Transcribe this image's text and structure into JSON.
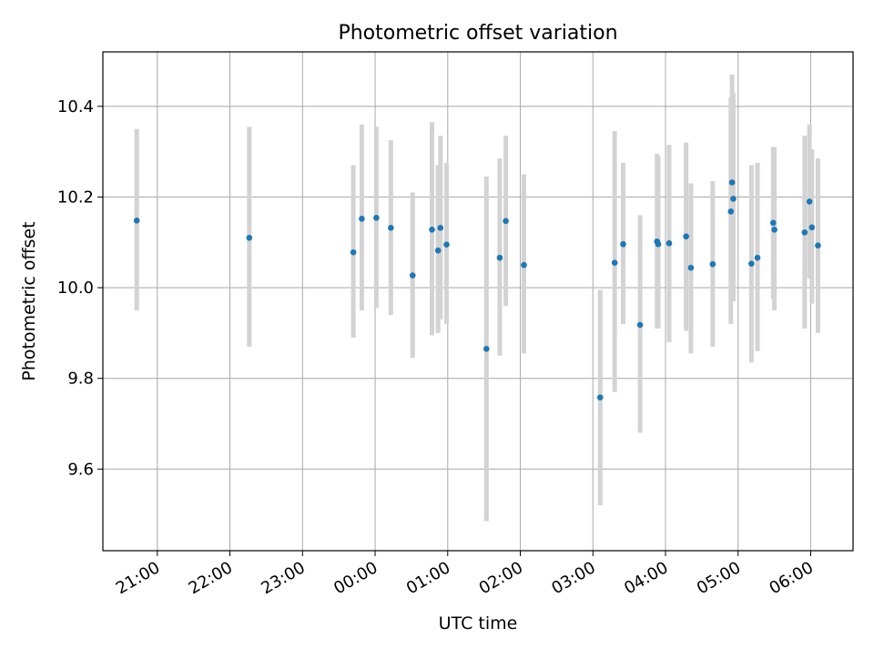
{
  "chart_data": {
    "type": "scatter",
    "title": "Photometric offset variation",
    "xlabel": "UTC time",
    "ylabel": "Photometric offset",
    "xlim": [
      "20:15",
      "06:35"
    ],
    "ylim": [
      9.42,
      10.52
    ],
    "x_ticks": [
      "21:00",
      "22:00",
      "23:00",
      "00:00",
      "01:00",
      "02:00",
      "03:00",
      "04:00",
      "05:00",
      "06:00"
    ],
    "y_ticks": [
      9.6,
      9.8,
      10.0,
      10.2,
      10.4
    ],
    "y_tick_labels": [
      "9.6",
      "9.8",
      "10.0",
      "10.2",
      "10.4"
    ],
    "grid": true,
    "marker_color": "#1f77b4",
    "errorbar_color": "#d3d3d3",
    "points": [
      {
        "x": "20:43",
        "y": 10.148,
        "lo": 9.95,
        "hi": 10.35
      },
      {
        "x": "22:16",
        "y": 10.11,
        "lo": 9.87,
        "hi": 10.355
      },
      {
        "x": "23:42",
        "y": 10.078,
        "lo": 9.89,
        "hi": 10.27
      },
      {
        "x": "23:49",
        "y": 10.152,
        "lo": 9.95,
        "hi": 10.36
      },
      {
        "x": "00:01",
        "y": 10.154,
        "lo": 9.955,
        "hi": 10.355
      },
      {
        "x": "00:13",
        "y": 10.132,
        "lo": 9.94,
        "hi": 10.325
      },
      {
        "x": "00:31",
        "y": 10.027,
        "lo": 9.845,
        "hi": 10.21
      },
      {
        "x": "00:47",
        "y": 10.128,
        "lo": 9.895,
        "hi": 10.365
      },
      {
        "x": "00:52",
        "y": 10.082,
        "lo": 9.9,
        "hi": 10.27
      },
      {
        "x": "00:54",
        "y": 10.132,
        "lo": 9.93,
        "hi": 10.335
      },
      {
        "x": "00:59",
        "y": 10.095,
        "lo": 9.92,
        "hi": 10.275
      },
      {
        "x": "01:32",
        "y": 9.865,
        "lo": 9.485,
        "hi": 10.245
      },
      {
        "x": "01:43",
        "y": 10.066,
        "lo": 9.85,
        "hi": 10.285
      },
      {
        "x": "01:48",
        "y": 10.147,
        "lo": 9.96,
        "hi": 10.335
      },
      {
        "x": "02:03",
        "y": 10.05,
        "lo": 9.855,
        "hi": 10.25
      },
      {
        "x": "03:06",
        "y": 9.758,
        "lo": 9.52,
        "hi": 9.995
      },
      {
        "x": "03:18",
        "y": 10.055,
        "lo": 9.77,
        "hi": 10.345
      },
      {
        "x": "03:25",
        "y": 10.096,
        "lo": 9.92,
        "hi": 10.275
      },
      {
        "x": "03:39",
        "y": 9.918,
        "lo": 9.68,
        "hi": 10.16
      },
      {
        "x": "03:53",
        "y": 10.102,
        "lo": 9.91,
        "hi": 10.295
      },
      {
        "x": "03:54",
        "y": 10.096,
        "lo": 9.91,
        "hi": 10.29
      },
      {
        "x": "04:03",
        "y": 10.098,
        "lo": 9.88,
        "hi": 10.315
      },
      {
        "x": "04:17",
        "y": 10.113,
        "lo": 9.905,
        "hi": 10.32
      },
      {
        "x": "04:21",
        "y": 10.044,
        "lo": 9.855,
        "hi": 10.23
      },
      {
        "x": "04:39",
        "y": 10.052,
        "lo": 9.87,
        "hi": 10.235
      },
      {
        "x": "04:54",
        "y": 10.168,
        "lo": 9.92,
        "hi": 10.42
      },
      {
        "x": "04:55",
        "y": 10.232,
        "lo": 10.0,
        "hi": 10.47
      },
      {
        "x": "04:56",
        "y": 10.196,
        "lo": 9.97,
        "hi": 10.43
      },
      {
        "x": "05:11",
        "y": 10.053,
        "lo": 9.835,
        "hi": 10.27
      },
      {
        "x": "05:16",
        "y": 10.066,
        "lo": 9.86,
        "hi": 10.275
      },
      {
        "x": "05:29",
        "y": 10.143,
        "lo": 9.975,
        "hi": 10.31
      },
      {
        "x": "05:30",
        "y": 10.128,
        "lo": 9.95,
        "hi": 10.31
      },
      {
        "x": "05:55",
        "y": 10.122,
        "lo": 9.91,
        "hi": 10.335
      },
      {
        "x": "05:59",
        "y": 10.19,
        "lo": 10.02,
        "hi": 10.36
      },
      {
        "x": "06:01",
        "y": 10.133,
        "lo": 9.965,
        "hi": 10.305
      },
      {
        "x": "06:06",
        "y": 10.093,
        "lo": 9.9,
        "hi": 10.285
      }
    ]
  }
}
